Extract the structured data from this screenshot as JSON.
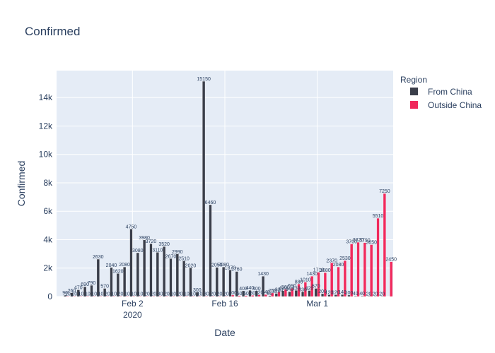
{
  "chart_data": {
    "type": "bar",
    "barmode": "group",
    "title": "Confirmed",
    "xlabel": "Date",
    "ylabel": "Confirmed",
    "x_tick_labels": [
      {
        "date": "2020-02-02",
        "label": "Feb 2",
        "sublabel": "2020"
      },
      {
        "date": "2020-02-16",
        "label": "Feb 16",
        "sublabel": ""
      },
      {
        "date": "2020-03-01",
        "label": "Mar 1",
        "sublabel": ""
      }
    ],
    "y_ticks": [
      0,
      2000,
      4000,
      6000,
      8000,
      10000,
      12000,
      14000
    ],
    "y_tick_labels": [
      "0",
      "2k",
      "4k",
      "6k",
      "8k",
      "10k",
      "12k",
      "14k"
    ],
    "ylim": [
      0,
      15900
    ],
    "x_start": "2020-01-22",
    "x_end": "2020-03-12",
    "legend": {
      "title": "Region",
      "position": "top-right"
    },
    "series": [
      {
        "name": "From China",
        "color": "#3a3e4a",
        "data": [
          [
            "2020-01-23",
            90
          ],
          [
            "2020-01-24",
            260
          ],
          [
            "2020-01-25",
            470
          ],
          [
            "2020-01-26",
            690
          ],
          [
            "2020-01-27",
            790
          ],
          [
            "2020-01-28",
            2630
          ],
          [
            "2020-01-29",
            570
          ],
          [
            "2020-01-30",
            2040
          ],
          [
            "2020-01-31",
            1620
          ],
          [
            "2020-02-01",
            2080
          ],
          [
            "2020-02-02",
            4750
          ],
          [
            "2020-02-03",
            3080
          ],
          [
            "2020-02-04",
            3980
          ],
          [
            "2020-02-05",
            3720
          ],
          [
            "2020-02-06",
            3110
          ],
          [
            "2020-02-07",
            3520
          ],
          [
            "2020-02-08",
            2670
          ],
          [
            "2020-02-09",
            2990
          ],
          [
            "2020-02-10",
            2510
          ],
          [
            "2020-02-11",
            2020
          ],
          [
            "2020-02-12",
            300
          ],
          [
            "2020-02-13",
            15150
          ],
          [
            "2020-02-14",
            6460
          ],
          [
            "2020-02-15",
            2050
          ],
          [
            "2020-02-16",
            2080
          ],
          [
            "2020-02-17",
            1870
          ],
          [
            "2020-02-18",
            1760
          ],
          [
            "2020-02-19",
            400
          ],
          [
            "2020-02-20",
            440
          ],
          [
            "2020-02-21",
            400
          ],
          [
            "2020-02-22",
            1430
          ],
          [
            "2020-02-23",
            60
          ],
          [
            "2020-02-24",
            220
          ],
          [
            "2020-02-25",
            410
          ],
          [
            "2020-02-26",
            340
          ],
          [
            "2020-02-27",
            430
          ],
          [
            "2020-02-28",
            330
          ],
          [
            "2020-02-29",
            420
          ],
          [
            "2020-03-01",
            570
          ],
          [
            "2020-03-02",
            200
          ],
          [
            "2020-03-03",
            120
          ],
          [
            "2020-03-04",
            120
          ],
          [
            "2020-03-05",
            140
          ],
          [
            "2020-03-06",
            100
          ],
          [
            "2020-03-07",
            40
          ],
          [
            "2020-03-08",
            40
          ],
          [
            "2020-03-09",
            20
          ],
          [
            "2020-03-10",
            20
          ],
          [
            "2020-03-11",
            20
          ]
        ]
      },
      {
        "name": "Outside China",
        "color": "#f0295c",
        "data": [
          [
            "2020-01-23",
            10
          ],
          [
            "2020-01-24",
            10
          ],
          [
            "2020-01-25",
            10
          ],
          [
            "2020-01-26",
            10
          ],
          [
            "2020-01-27",
            10
          ],
          [
            "2020-01-28",
            10
          ],
          [
            "2020-01-29",
            20
          ],
          [
            "2020-01-30",
            10
          ],
          [
            "2020-01-31",
            20
          ],
          [
            "2020-02-01",
            10
          ],
          [
            "2020-02-02",
            10
          ],
          [
            "2020-02-03",
            10
          ],
          [
            "2020-02-04",
            20
          ],
          [
            "2020-02-05",
            20
          ],
          [
            "2020-02-06",
            30
          ],
          [
            "2020-02-07",
            20
          ],
          [
            "2020-02-08",
            10
          ],
          [
            "2020-02-09",
            20
          ],
          [
            "2020-02-10",
            10
          ],
          [
            "2020-02-11",
            10
          ],
          [
            "2020-02-12",
            10
          ],
          [
            "2020-02-13",
            30
          ],
          [
            "2020-02-14",
            20
          ],
          [
            "2020-02-15",
            20
          ],
          [
            "2020-02-16",
            20
          ],
          [
            "2020-02-17",
            100
          ],
          [
            "2020-02-18",
            60
          ],
          [
            "2020-02-19",
            60
          ],
          [
            "2020-02-20",
            80
          ],
          [
            "2020-02-21",
            120
          ],
          [
            "2020-02-22",
            140
          ],
          [
            "2020-02-23",
            250
          ],
          [
            "2020-02-24",
            330
          ],
          [
            "2020-02-25",
            500
          ],
          [
            "2020-02-26",
            590
          ],
          [
            "2020-02-27",
            880
          ],
          [
            "2020-02-28",
            1010
          ],
          [
            "2020-02-29",
            1430
          ],
          [
            "2020-03-01",
            1710
          ],
          [
            "2020-03-02",
            1680
          ],
          [
            "2020-03-03",
            2370
          ],
          [
            "2020-03-04",
            2080
          ],
          [
            "2020-03-05",
            2530
          ],
          [
            "2020-03-06",
            3700
          ],
          [
            "2020-03-07",
            3820
          ],
          [
            "2020-03-08",
            3790
          ],
          [
            "2020-03-09",
            3650
          ],
          [
            "2020-03-10",
            5510
          ],
          [
            "2020-03-11",
            7250
          ],
          [
            "2020-03-12",
            2450
          ]
        ]
      }
    ]
  }
}
